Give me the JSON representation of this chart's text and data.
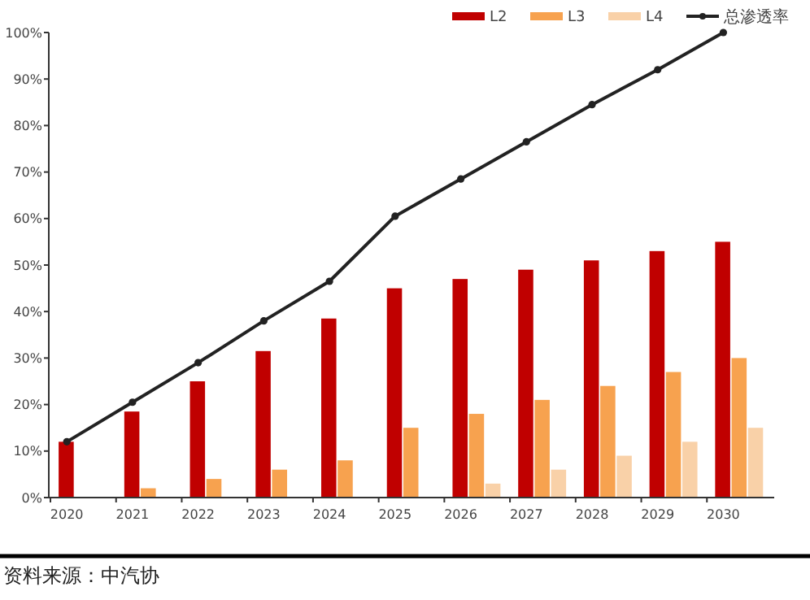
{
  "chart_data": {
    "type": "bar",
    "categories": [
      "2020",
      "2021",
      "2022",
      "2023",
      "2024",
      "2025",
      "2026",
      "2027",
      "2028",
      "2029",
      "2030"
    ],
    "series": [
      {
        "name": "L2",
        "color": "#c00000",
        "values": [
          12,
          18.5,
          25,
          31.5,
          38.5,
          45,
          47,
          49,
          51,
          53,
          55
        ]
      },
      {
        "name": "L3",
        "color": "#f7a24f",
        "values": [
          0,
          2,
          4,
          6,
          8,
          15,
          18,
          21,
          24,
          27,
          30
        ]
      },
      {
        "name": "L4",
        "color": "#f9d1a8",
        "values": [
          0,
          0,
          0,
          0,
          0,
          0,
          3,
          6,
          9,
          12,
          15
        ]
      },
      {
        "name": "总渗透率",
        "type": "line",
        "color": "#222222",
        "marker": "circle",
        "values": [
          12,
          20.5,
          29,
          38,
          46.5,
          60.5,
          68.5,
          76.5,
          84.5,
          92,
          100
        ]
      }
    ],
    "ylim": [
      0,
      100
    ],
    "yticks": [
      {
        "value": 0,
        "label": "0%"
      },
      {
        "value": 10,
        "label": "10%"
      },
      {
        "value": 20,
        "label": "20%"
      },
      {
        "value": 30,
        "label": "30%"
      },
      {
        "value": 40,
        "label": "40%"
      },
      {
        "value": 50,
        "label": "50%"
      },
      {
        "value": 60,
        "label": "60%"
      },
      {
        "value": 70,
        "label": "70%"
      },
      {
        "value": 80,
        "label": "80%"
      },
      {
        "value": 90,
        "label": "90%"
      },
      {
        "value": 100,
        "label": "100%"
      }
    ],
    "legend": "top right",
    "annotations": [
      "资料来源：中汽协"
    ]
  }
}
